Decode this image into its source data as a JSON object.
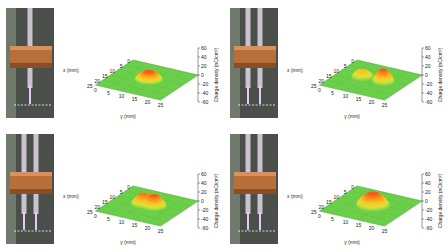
{
  "chart_data": [
    {
      "type": "surface",
      "xlabel": "x (mm)",
      "ylabel": "y (mm)",
      "zlabel": "Charge density (nC/cm²)",
      "xlim": [
        0,
        25
      ],
      "ylim": [
        0,
        25
      ],
      "zlim": [
        -60,
        60
      ],
      "xticks": [
        0,
        5,
        10,
        15,
        20,
        25
      ],
      "yticks": [
        0,
        5,
        10,
        15,
        20,
        25
      ],
      "zticks": [
        -60,
        -40,
        -20,
        0,
        20,
        40,
        60
      ],
      "peaks": [
        {
          "x": 12,
          "y": 13,
          "value": 20,
          "width": 5
        }
      ]
    },
    {
      "type": "surface",
      "xlabel": "x (mm)",
      "ylabel": "y (mm)",
      "zlabel": "Charge density (nC/cm²)",
      "xlim": [
        0,
        25
      ],
      "ylim": [
        0,
        25
      ],
      "zlim": [
        -60,
        60
      ],
      "xticks": [
        0,
        5,
        10,
        15,
        20,
        25
      ],
      "yticks": [
        0,
        5,
        10,
        15,
        20,
        25
      ],
      "zticks": [
        -60,
        -40,
        -20,
        0,
        20,
        40,
        60
      ],
      "peaks": [
        {
          "x": 12,
          "y": 9,
          "value": 18,
          "width": 4
        },
        {
          "x": 12,
          "y": 17,
          "value": 30,
          "width": 4
        }
      ]
    },
    {
      "type": "surface",
      "xlabel": "x (mm)",
      "ylabel": "y (mm)",
      "zlabel": "Charge density (nC/cm²)",
      "xlim": [
        0,
        25
      ],
      "ylim": [
        0,
        25
      ],
      "zlim": [
        -60,
        60
      ],
      "xticks": [
        0,
        5,
        10,
        15,
        20,
        25
      ],
      "yticks": [
        0,
        5,
        10,
        15,
        20,
        25
      ],
      "zticks": [
        -60,
        -40,
        -20,
        0,
        20,
        40,
        60
      ],
      "peaks": [
        {
          "x": 12,
          "y": 11,
          "value": 25,
          "width": 4.5
        },
        {
          "x": 12,
          "y": 15,
          "value": 28,
          "width": 4.5
        },
        {
          "x": 10,
          "y": 13,
          "value": 22,
          "width": 4.5
        }
      ]
    },
    {
      "type": "surface",
      "xlabel": "x (mm)",
      "ylabel": "y (mm)",
      "zlabel": "Charge density (nC/cm²)",
      "xlim": [
        0,
        25
      ],
      "ylim": [
        0,
        25
      ],
      "zlim": [
        -60,
        60
      ],
      "xticks": [
        0,
        5,
        10,
        15,
        20,
        25
      ],
      "yticks": [
        0,
        5,
        10,
        15,
        20,
        25
      ],
      "zticks": [
        -60,
        -40,
        -20,
        0,
        20,
        40,
        60
      ],
      "peaks": [
        {
          "x": 12,
          "y": 13,
          "value": 30,
          "width": 6
        }
      ]
    }
  ]
}
